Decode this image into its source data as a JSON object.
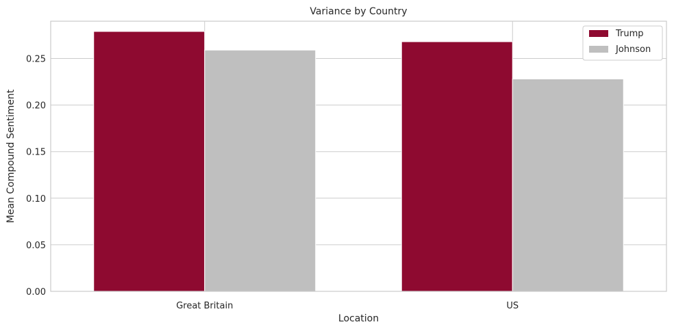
{
  "chart_data": {
    "type": "bar",
    "title": "Variance by Country",
    "xlabel": "Location",
    "ylabel": "Mean Compound Sentiment",
    "categories": [
      "Great Britain",
      "US"
    ],
    "series": [
      {
        "name": "Trump",
        "values": [
          0.279,
          0.268
        ],
        "color": "#8e0a30"
      },
      {
        "name": "Johnson",
        "values": [
          0.259,
          0.228
        ],
        "color": "#bfbfbf"
      }
    ],
    "ylim": [
      0,
      0.29
    ],
    "yticks": [
      "0.00",
      "0.05",
      "0.10",
      "0.15",
      "0.20",
      "0.25"
    ],
    "grid": true,
    "legend_position": "top-right"
  }
}
